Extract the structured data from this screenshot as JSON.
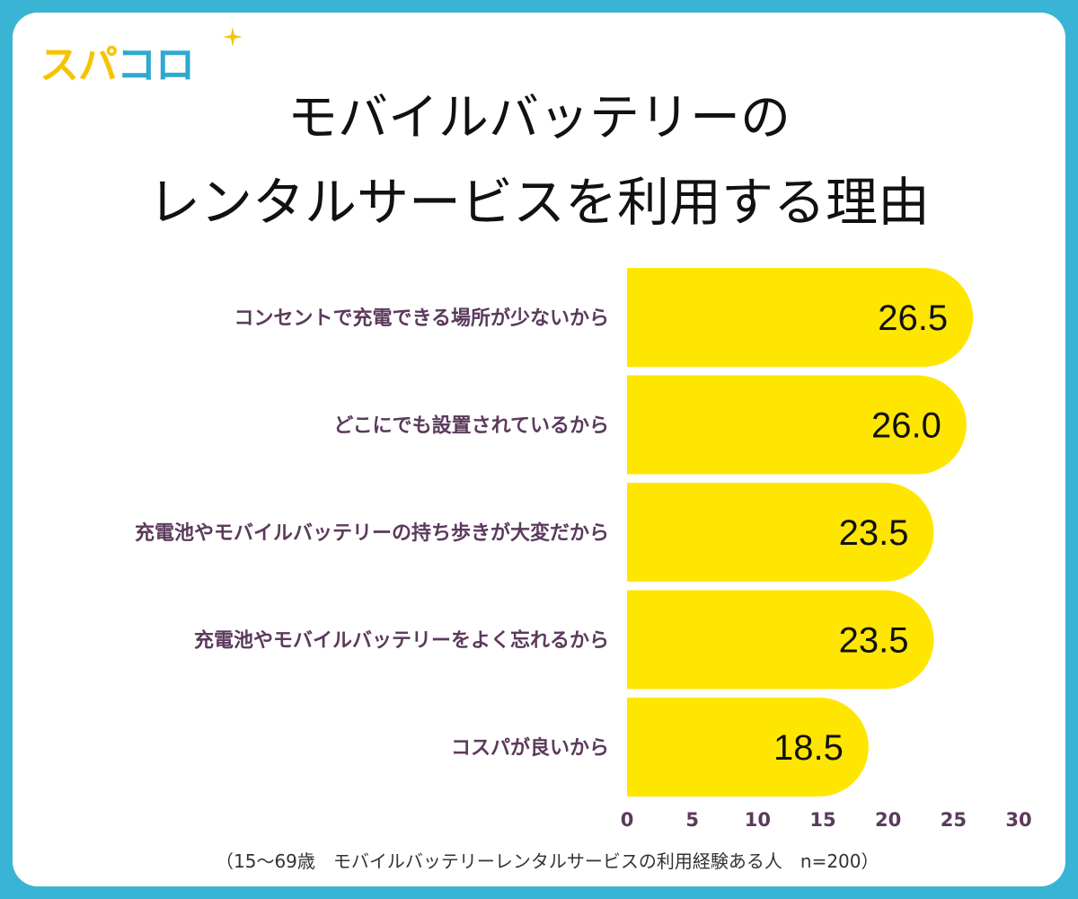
{
  "logo": {
    "part1": "スパ",
    "part2": "コロ",
    "sparkle_icon": "sparkle-icon"
  },
  "colors": {
    "frame": "#3ab4d4",
    "bar": "#ffe600",
    "label": "#5b3a5c",
    "logo_yellow": "#f6c400",
    "logo_blue": "#2ea9cf"
  },
  "chart_data": {
    "type": "bar",
    "orientation": "horizontal",
    "title": [
      "モバイルバッテリーの",
      "レンタルサービスを利用する理由"
    ],
    "categories": [
      "コンセントで充電できる場所が少ないから",
      "どこにでも設置されているから",
      "充電池やモバイルバッテリーの持ち歩きが大変だから",
      "充電池やモバイルバッテリーをよく忘れるから",
      "コスパが良いから"
    ],
    "values": [
      26.5,
      26.0,
      23.5,
      23.5,
      18.5
    ],
    "value_labels": [
      "26.5",
      "26.0",
      "23.5",
      "23.5",
      "18.5"
    ],
    "xlim": [
      0,
      30
    ],
    "xticks": [
      "0",
      "5",
      "10",
      "15",
      "20",
      "25",
      "30"
    ],
    "note": "（15〜69歳　モバイルバッテリーレンタルサービスの利用経験ある人　n=200）"
  }
}
